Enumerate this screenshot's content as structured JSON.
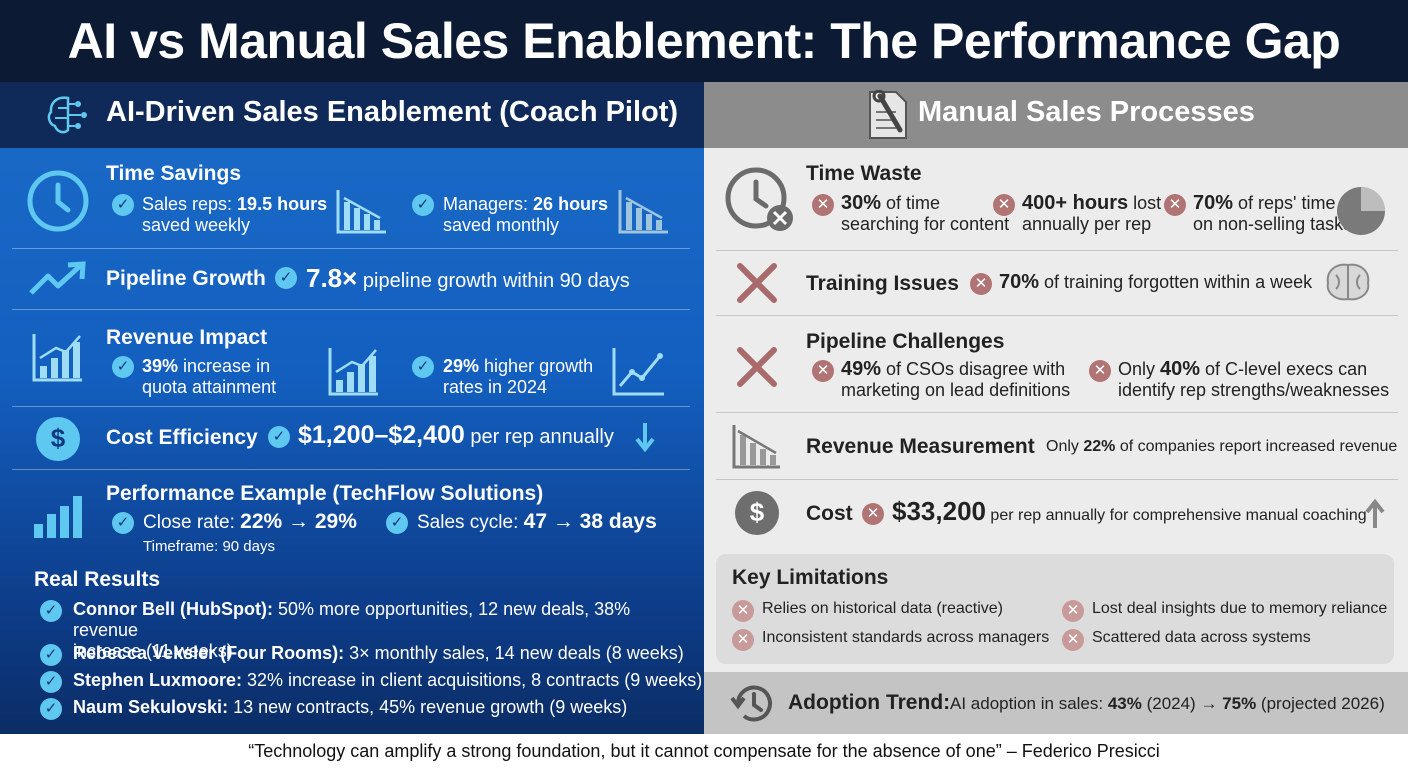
{
  "title": "AI vs Manual Sales Enablement: The Performance Gap",
  "left": {
    "heading": "AI-Driven Sales Enablement (Coach Pilot)",
    "time_savings": {
      "title": "Time Savings",
      "items": [
        {
          "prefix": "Sales reps: ",
          "bold": "19.5 hours",
          "line2": "saved weekly"
        },
        {
          "prefix": "Managers: ",
          "bold": "26 hours",
          "line2": "saved monthly"
        }
      ]
    },
    "pipeline": {
      "title": "Pipeline Growth",
      "bold": "7.8×",
      "text": " pipeline growth within 90 days"
    },
    "revenue": {
      "title": "Revenue Impact",
      "items": [
        {
          "bold": "39%",
          "text": " increase in",
          "line2": "quota attainment"
        },
        {
          "bold": "29%",
          "text": " higher growth",
          "line2": "rates in 2024"
        }
      ]
    },
    "cost": {
      "title": "Cost Efficiency",
      "bold": "$1,200–$2,400",
      "text": " per rep annually"
    },
    "performance": {
      "title": "Performance Example (TechFlow Solutions)",
      "close_label": "Close rate: ",
      "close_value": "22% → 29%",
      "cycle_label": "Sales cycle: ",
      "cycle_value": "47 → 38 days",
      "timeframe": "Timeframe: 90 days"
    },
    "real_results": {
      "title": "Real Results",
      "items": [
        {
          "name": "Connor Bell (HubSpot):",
          "text": " 50% more opportunities, 12 new deals, 38% revenue",
          "line2": "increase (11 weeks)"
        },
        {
          "name": "Rebecca Veksler (Four Rooms):",
          "text": " 3× monthly sales, 14 new deals (8 weeks)"
        },
        {
          "name": "Stephen Luxmoore:",
          "text": " 32% increase in client acquisitions, 8 contracts (9 weeks)"
        },
        {
          "name": "Naum Sekulovski:",
          "text": " 13 new contracts, 45% revenue growth (9 weeks)"
        }
      ]
    }
  },
  "right": {
    "heading": "Manual Sales Processes",
    "time_waste": {
      "title": "Time Waste",
      "items": [
        {
          "bold": "30%",
          "text": " of time",
          "line2": "searching for content"
        },
        {
          "bold": "400+ hours",
          "text": " lost",
          "line2": "annually per rep"
        },
        {
          "bold": "70%",
          "text": " of reps' time",
          "line2": "on non-selling tasks"
        }
      ]
    },
    "training": {
      "title": "Training Issues",
      "bold": "70%",
      "text": " of training forgotten within a week"
    },
    "pipeline": {
      "title": "Pipeline Challenges",
      "items": [
        {
          "prefix": "",
          "bold": "49%",
          "text": " of CSOs disagree with",
          "line2": "marketing on lead definitions"
        },
        {
          "prefix": "Only ",
          "bold": "40%",
          "text": " of C-level execs can",
          "line2": "identify rep strengths/weaknesses"
        }
      ]
    },
    "revenue": {
      "title": "Revenue Measurement",
      "prefix": "Only ",
      "bold": "22%",
      "text": " of companies report increased revenue"
    },
    "cost": {
      "title": "Cost",
      "bold": "$33,200",
      "text": " per rep annually for comprehensive manual coaching"
    },
    "limitations": {
      "title": "Key Limitations",
      "items": [
        "Relies on historical data (reactive)",
        "Lost deal insights due to memory reliance",
        "Inconsistent standards across managers",
        "Scattered data across systems"
      ]
    },
    "adoption": {
      "label": "Adoption Trend:",
      "text": "AI adoption in sales: ",
      "v1": "43%",
      "t1": " (2024) → ",
      "v2": "75%",
      "t2": " (projected 2026)"
    }
  },
  "footer": "“Technology can amplify a strong foundation, but it cannot compensate for the absence of one” – Federico Presicci",
  "colors": {
    "header_bg": "#0c1a33",
    "left_accent": "#5ec8f0",
    "right_accent": "#b07474"
  },
  "icons": [
    "brain-circuit-icon",
    "clock-icon",
    "bar-chart-down-icon",
    "trend-up-arrow-icon",
    "bar-chart-up-icon",
    "line-chart-icon",
    "dollar-coin-icon",
    "arrow-down-icon",
    "bar-chart-icon",
    "wrench-document-icon",
    "clock-x-icon",
    "pie-chart-icon",
    "x-mark-icon",
    "brain-icon",
    "arrow-up-icon",
    "history-clock-icon"
  ]
}
